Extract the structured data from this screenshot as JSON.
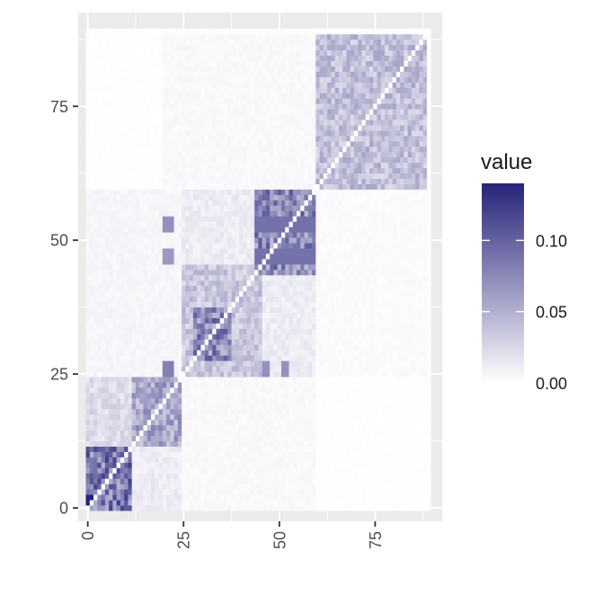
{
  "chart_data": {
    "type": "heatmap",
    "title": "",
    "xlabel": "",
    "ylabel": "",
    "n": 90,
    "xlim": [
      -2.5,
      92.5
    ],
    "ylim": [
      -2.5,
      92.5
    ],
    "x_ticks": [
      0,
      25,
      50,
      75
    ],
    "x_tick_labels": [
      "0",
      "25",
      "50",
      "75"
    ],
    "y_ticks": [
      0,
      25,
      50,
      75
    ],
    "y_tick_labels": [
      "0",
      "25",
      "50",
      "75"
    ],
    "grid": true,
    "legend": {
      "title": "value",
      "position": "right",
      "min": 0,
      "max": 0.14,
      "breaks": [
        0.1,
        0.05,
        0.0
      ],
      "break_labels": [
        "0.10",
        "0.05",
        "0.00"
      ],
      "low_color": "#ffffff",
      "high_color": "#27237a"
    },
    "diagonal_value": 0,
    "blocks": [
      {
        "range": [
          0,
          11
        ],
        "value": 0.085
      },
      {
        "range": [
          12,
          24
        ],
        "value": 0.055
      },
      {
        "range": [
          25,
          45
        ],
        "value": 0.035
      },
      {
        "range": [
          28,
          37
        ],
        "value": 0.075
      },
      {
        "range": [
          44,
          59
        ],
        "value": 0.075
      },
      {
        "range": [
          60,
          88
        ],
        "value": 0.04
      }
    ],
    "off_blocks": [
      {
        "rows": [
          0,
          11
        ],
        "cols": [
          12,
          24
        ],
        "value": 0.012
      },
      {
        "rows": [
          12,
          24
        ],
        "cols": [
          0,
          11
        ],
        "value": 0.022
      },
      {
        "rows": [
          25,
          59
        ],
        "cols": [
          25,
          59
        ],
        "value": 0.012
      },
      {
        "rows": [
          0,
          24
        ],
        "cols": [
          25,
          59
        ],
        "value": 0.004
      },
      {
        "rows": [
          25,
          59
        ],
        "cols": [
          0,
          24
        ],
        "value": 0.006
      },
      {
        "rows": [
          60,
          88
        ],
        "cols": [
          20,
          59
        ],
        "value": 0.004
      },
      {
        "rows": [
          25,
          59
        ],
        "cols": [
          60,
          88
        ],
        "value": 0.003
      }
    ],
    "highlights": [
      {
        "rows": [
          1,
          2
        ],
        "cols": [
          0,
          1
        ],
        "value": 0.14
      },
      {
        "rows": [
          52,
          54
        ],
        "cols": [
          20,
          22
        ],
        "value": 0.07
      },
      {
        "rows": [
          46,
          48
        ],
        "cols": [
          20,
          22
        ],
        "value": 0.065
      },
      {
        "rows": [
          25,
          27
        ],
        "cols": [
          20,
          22
        ],
        "value": 0.08
      },
      {
        "rows": [
          25,
          27
        ],
        "cols": [
          46,
          47
        ],
        "value": 0.07
      },
      {
        "rows": [
          25,
          27
        ],
        "cols": [
          51,
          52
        ],
        "value": 0.07
      },
      {
        "rows": [
          52,
          54
        ],
        "cols": [
          44,
          59
        ],
        "value": 0.09
      },
      {
        "rows": [
          46,
          48
        ],
        "cols": [
          44,
          59
        ],
        "value": 0.09
      }
    ]
  }
}
